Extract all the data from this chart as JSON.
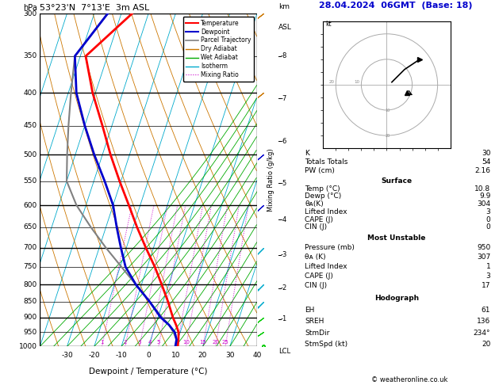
{
  "title_left": "53°23'N  7°13'E  3m ASL",
  "title_right": "28.04.2024  06GMT  (Base: 18)",
  "xlabel": "Dewpoint / Temperature (°C)",
  "pressure_levels": [
    300,
    350,
    400,
    450,
    500,
    550,
    600,
    650,
    700,
    750,
    800,
    850,
    900,
    950,
    1000
  ],
  "temp_profile_p": [
    1000,
    975,
    950,
    925,
    900,
    850,
    800,
    750,
    700,
    650,
    600,
    550,
    500,
    450,
    400,
    350,
    300
  ],
  "temp_profile_t": [
    10.8,
    10.2,
    9.4,
    7.6,
    5.5,
    1.8,
    -2.5,
    -7.2,
    -12.8,
    -18.5,
    -24.2,
    -30.5,
    -37.0,
    -43.5,
    -51.0,
    -58.0,
    -46.0
  ],
  "dewp_profile_p": [
    1000,
    975,
    950,
    925,
    900,
    850,
    800,
    750,
    700,
    650,
    600,
    550,
    500,
    450,
    400,
    350,
    300
  ],
  "dewp_profile_t": [
    9.9,
    9.5,
    8.0,
    5.0,
    1.0,
    -5.0,
    -12.0,
    -18.0,
    -22.0,
    -26.0,
    -30.0,
    -36.0,
    -43.0,
    -50.0,
    -57.0,
    -62.0,
    -55.0
  ],
  "parcel_profile_p": [
    1000,
    975,
    950,
    925,
    900,
    850,
    800,
    750,
    700,
    650,
    600,
    550,
    500,
    450,
    400,
    350,
    300
  ],
  "parcel_profile_t": [
    10.8,
    9.5,
    7.5,
    5.0,
    1.5,
    -5.0,
    -12.0,
    -19.5,
    -27.5,
    -35.5,
    -43.5,
    -50.0,
    -53.0,
    -56.0,
    -59.0,
    -62.0,
    -55.0
  ],
  "background_color": "#ffffff",
  "temp_color": "#ff0000",
  "dewpoint_color": "#0000cc",
  "parcel_color": "#808080",
  "dry_adiabat_color": "#cc7700",
  "wet_adiabat_color": "#00aa00",
  "isotherm_color": "#00aacc",
  "mixing_ratio_color": "#cc00cc",
  "mixing_ratios": [
    1,
    2,
    3,
    4,
    5,
    8,
    10,
    15,
    20,
    25
  ],
  "km_ticks": [
    1,
    2,
    3,
    4,
    5,
    6,
    7,
    8
  ],
  "km_pressures": [
    905,
    810,
    718,
    632,
    554,
    476,
    408,
    350
  ],
  "p_min": 300,
  "p_max": 1000,
  "t_min": -40,
  "t_max": 40,
  "skew_deg": 45,
  "stats": {
    "K": 30,
    "Totals_Totals": 54,
    "PW_cm": "2.16",
    "Surface_Temp": "10.8",
    "Surface_Dewp": "9.9",
    "Surface_ThetaE": 304,
    "Surface_LI": 3,
    "Surface_CAPE": 0,
    "Surface_CIN": 0,
    "MU_Pressure": 950,
    "MU_ThetaE": 307,
    "MU_LI": 1,
    "MU_CAPE": 3,
    "MU_CIN": 17,
    "EH": 61,
    "SREH": 136,
    "StmDir": "234°",
    "StmSpd": 20
  },
  "lcl_pressure": 993,
  "wind_pressures": [
    1000,
    950,
    900,
    850,
    800,
    700,
    600,
    500,
    400,
    300
  ],
  "wind_u": [
    2,
    3,
    4,
    5,
    6,
    8,
    10,
    12,
    14,
    16
  ],
  "wind_v": [
    1,
    2,
    3,
    5,
    6,
    8,
    9,
    10,
    11,
    12
  ],
  "wind_colors": [
    "#00cc00",
    "#00cc00",
    "#00cc00",
    "#00aacc",
    "#00aacc",
    "#00aacc",
    "#0000cc",
    "#0000cc",
    "#cc7700",
    "#cc7700"
  ]
}
